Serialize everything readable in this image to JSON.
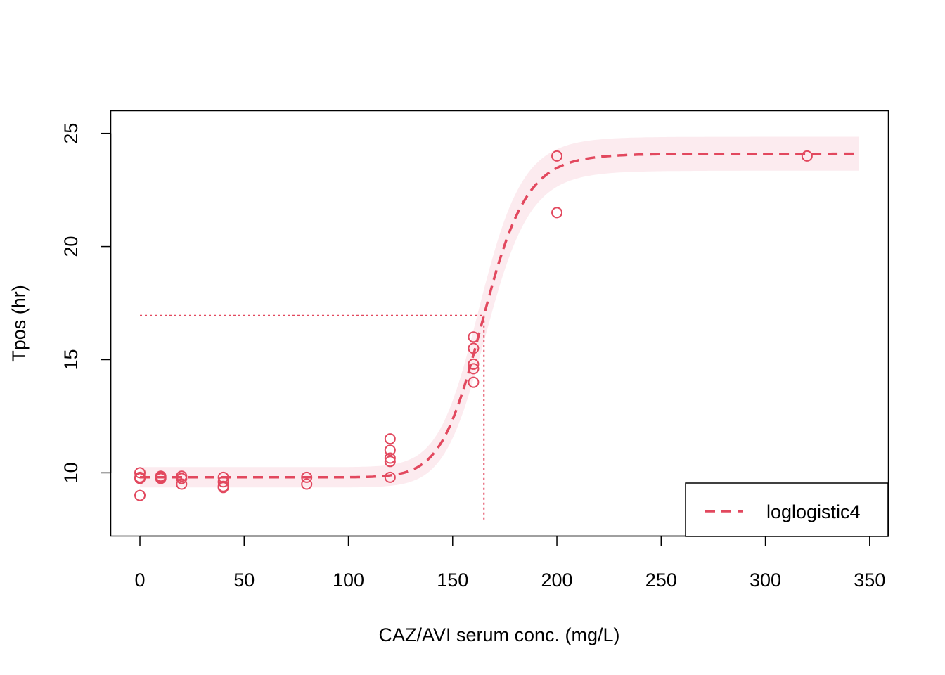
{
  "chart_data": {
    "type": "scatter",
    "title": "",
    "xlabel": "CAZ/AVI serum conc. (mg/L)",
    "ylabel": "Tpos (hr)",
    "xlim": [
      -14,
      359
    ],
    "ylim": [
      7.2,
      26
    ],
    "x_ticks": [
      0,
      50,
      100,
      150,
      200,
      250,
      300,
      350
    ],
    "y_ticks": [
      10,
      15,
      20,
      25
    ],
    "grid": false,
    "legend_position": "bottom-right",
    "colors": {
      "series": "#E2485E",
      "band": "#FCEBEF",
      "axis": "#000000"
    },
    "points": [
      {
        "x": 0,
        "y": 10.0
      },
      {
        "x": 0,
        "y": 9.8
      },
      {
        "x": 0,
        "y": 9.75
      },
      {
        "x": 0,
        "y": 9.0
      },
      {
        "x": 10,
        "y": 9.85
      },
      {
        "x": 10,
        "y": 9.8
      },
      {
        "x": 10,
        "y": 9.75
      },
      {
        "x": 20,
        "y": 9.85
      },
      {
        "x": 20,
        "y": 9.75
      },
      {
        "x": 20,
        "y": 9.5
      },
      {
        "x": 40,
        "y": 9.8
      },
      {
        "x": 40,
        "y": 9.6
      },
      {
        "x": 40,
        "y": 9.4
      },
      {
        "x": 40,
        "y": 9.35
      },
      {
        "x": 80,
        "y": 9.8
      },
      {
        "x": 80,
        "y": 9.5
      },
      {
        "x": 120,
        "y": 11.5
      },
      {
        "x": 120,
        "y": 11.0
      },
      {
        "x": 120,
        "y": 10.65
      },
      {
        "x": 120,
        "y": 10.5
      },
      {
        "x": 120,
        "y": 9.8
      },
      {
        "x": 160,
        "y": 16.0
      },
      {
        "x": 160,
        "y": 15.5
      },
      {
        "x": 160,
        "y": 14.8
      },
      {
        "x": 160,
        "y": 14.6
      },
      {
        "x": 160,
        "y": 14.0
      },
      {
        "x": 200,
        "y": 24.0
      },
      {
        "x": 200,
        "y": 21.5
      },
      {
        "x": 320,
        "y": 24.0
      }
    ],
    "fit": {
      "name": "loglogistic4",
      "model": "loglogistic4",
      "lower": 9.8,
      "upper": 24.1,
      "ec50": 165,
      "hill": 16,
      "x_range": [
        0,
        345
      ],
      "band_lower_width": 0.45,
      "band_upper_width": 0.75
    },
    "reference_lines": {
      "y": 16.95,
      "x": 165,
      "x_from": 0,
      "y_from": 7.9
    },
    "legend": [
      {
        "label": "loglogistic4",
        "style": "dashed"
      }
    ]
  }
}
